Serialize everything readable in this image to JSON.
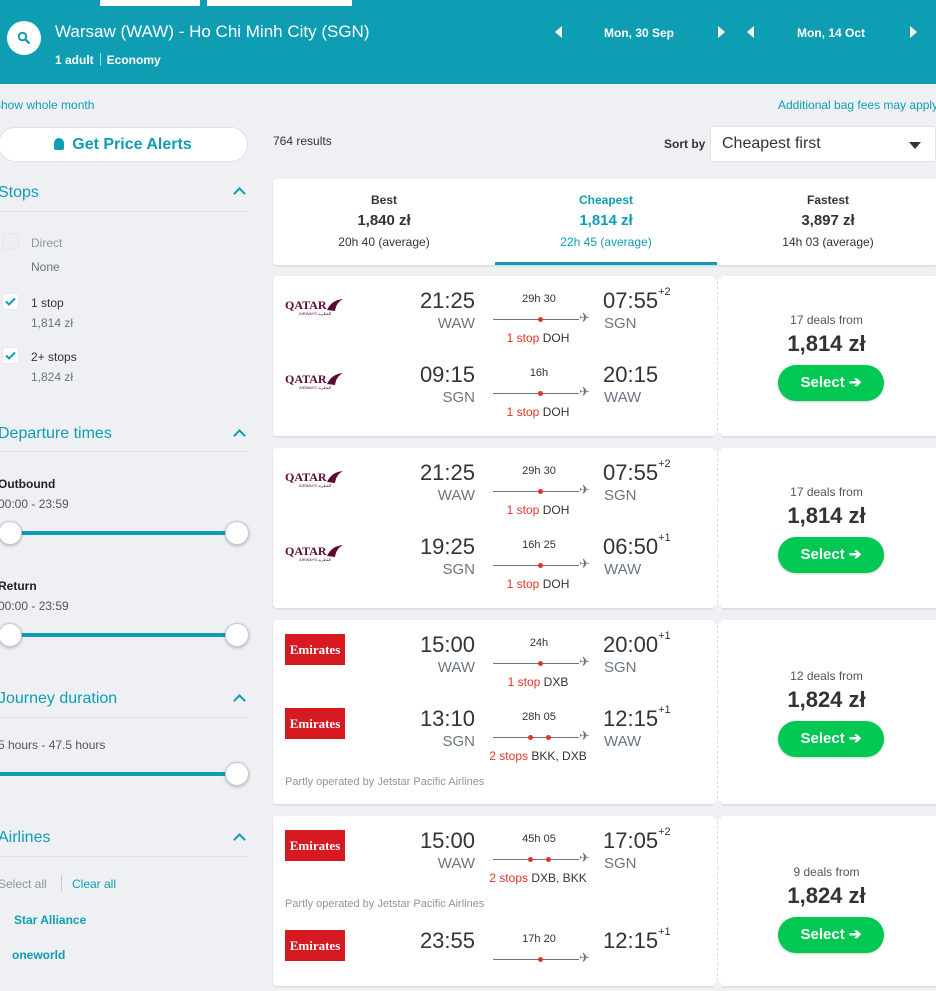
{
  "header": {
    "route": "Warsaw (WAW) - Ho Chi Minh City (SGN)",
    "passengers": "1 adult",
    "cabin": "Economy",
    "depart_date": "Mon, 30 Sep",
    "return_date": "Mon, 14 Oct"
  },
  "links": {
    "show_whole_month": "Show whole month",
    "bag_fees": "Additional bag fees may apply"
  },
  "sidebar": {
    "price_alerts": "Get Price Alerts",
    "stops": {
      "title": "Stops",
      "items": [
        {
          "label": "Direct",
          "sub": "None",
          "checked": false,
          "disabled": true
        },
        {
          "label": "1 stop",
          "sub": "1,814 zł",
          "checked": true,
          "disabled": false
        },
        {
          "label": "2+ stops",
          "sub": "1,824 zł",
          "checked": true,
          "disabled": false
        }
      ]
    },
    "departure": {
      "title": "Departure times",
      "outbound_label": "Outbound",
      "outbound_range": "00:00 - 23:59",
      "return_label": "Return",
      "return_range": "00:00 - 23:59"
    },
    "duration": {
      "title": "Journey duration",
      "range": "5 hours - 47.5 hours"
    },
    "airlines": {
      "title": "Airlines",
      "select_all": "Select all",
      "clear_all": "Clear all",
      "items": [
        "Star Alliance",
        "oneworld"
      ]
    }
  },
  "results": {
    "count": "764 results",
    "sort_label": "Sort by",
    "sort_value": "Cheapest first"
  },
  "tabs": [
    {
      "label": "Best",
      "price": "1,840 zł",
      "duration": "20h 40 (average)",
      "active": false
    },
    {
      "label": "Cheapest",
      "price": "1,814 zł",
      "duration": "22h 45 (average)",
      "active": true
    },
    {
      "label": "Fastest",
      "price": "3,897 zł",
      "duration": "14h 03 (average)",
      "active": false
    }
  ],
  "cards": [
    {
      "deals": "17 deals from",
      "price": "1,814 zł",
      "select": "Select ➔",
      "legs": [
        {
          "airline": "qatar",
          "dep_time": "21:25",
          "dep_ap": "WAW",
          "duration": "29h 30",
          "stops_count": "1 stop",
          "stops_via": "DOH",
          "arr_time": "07:55",
          "arr_offset": "+2",
          "arr_ap": "SGN"
        },
        {
          "airline": "qatar",
          "dep_time": "09:15",
          "dep_ap": "SGN",
          "duration": "16h",
          "stops_count": "1 stop",
          "stops_via": "DOH",
          "arr_time": "20:15",
          "arr_offset": "",
          "arr_ap": "WAW"
        }
      ]
    },
    {
      "deals": "17 deals from",
      "price": "1,814 zł",
      "select": "Select ➔",
      "legs": [
        {
          "airline": "qatar",
          "dep_time": "21:25",
          "dep_ap": "WAW",
          "duration": "29h 30",
          "stops_count": "1 stop",
          "stops_via": "DOH",
          "arr_time": "07:55",
          "arr_offset": "+2",
          "arr_ap": "SGN"
        },
        {
          "airline": "qatar",
          "dep_time": "19:25",
          "dep_ap": "SGN",
          "duration": "16h 25",
          "stops_count": "1 stop",
          "stops_via": "DOH",
          "arr_time": "06:50",
          "arr_offset": "+1",
          "arr_ap": "WAW"
        }
      ]
    },
    {
      "deals": "12 deals from",
      "price": "1,824 zł",
      "select": "Select ➔",
      "operated": "Partly operated by Jetstar Pacific Airlines",
      "legs": [
        {
          "airline": "emirates",
          "dep_time": "15:00",
          "dep_ap": "WAW",
          "duration": "24h",
          "stops_count": "1 stop",
          "stops_via": "DXB",
          "arr_time": "20:00",
          "arr_offset": "+1",
          "arr_ap": "SGN"
        },
        {
          "airline": "emirates",
          "dep_time": "13:10",
          "dep_ap": "SGN",
          "duration": "28h 05",
          "stops_count": "2 stops",
          "stops_via": "BKK, DXB",
          "arr_time": "12:15",
          "arr_offset": "+1",
          "arr_ap": "WAW"
        }
      ]
    },
    {
      "deals": "9 deals from",
      "price": "1,824 zł",
      "select": "Select ➔",
      "operated": "Partly operated by Jetstar Pacific Airlines",
      "legs": [
        {
          "airline": "emirates",
          "dep_time": "15:00",
          "dep_ap": "WAW",
          "duration": "45h 05",
          "stops_count": "2 stops",
          "stops_via": "DXB, BKK",
          "arr_time": "17:05",
          "arr_offset": "+2",
          "arr_ap": "SGN"
        },
        {
          "airline": "emirates",
          "dep_time": "23:55",
          "dep_ap": "",
          "duration": "17h 20",
          "stops_count": "",
          "stops_via": "",
          "arr_time": "12:15",
          "arr_offset": "+1",
          "arr_ap": ""
        }
      ]
    }
  ],
  "logos": {
    "qatar": "QATAR",
    "qatar_sub": "AIRWAYS القطرية",
    "emirates": "Emirates"
  },
  "colors": {
    "brand": "#0e9db3",
    "select": "#00c853",
    "stop": "#e0342b"
  }
}
